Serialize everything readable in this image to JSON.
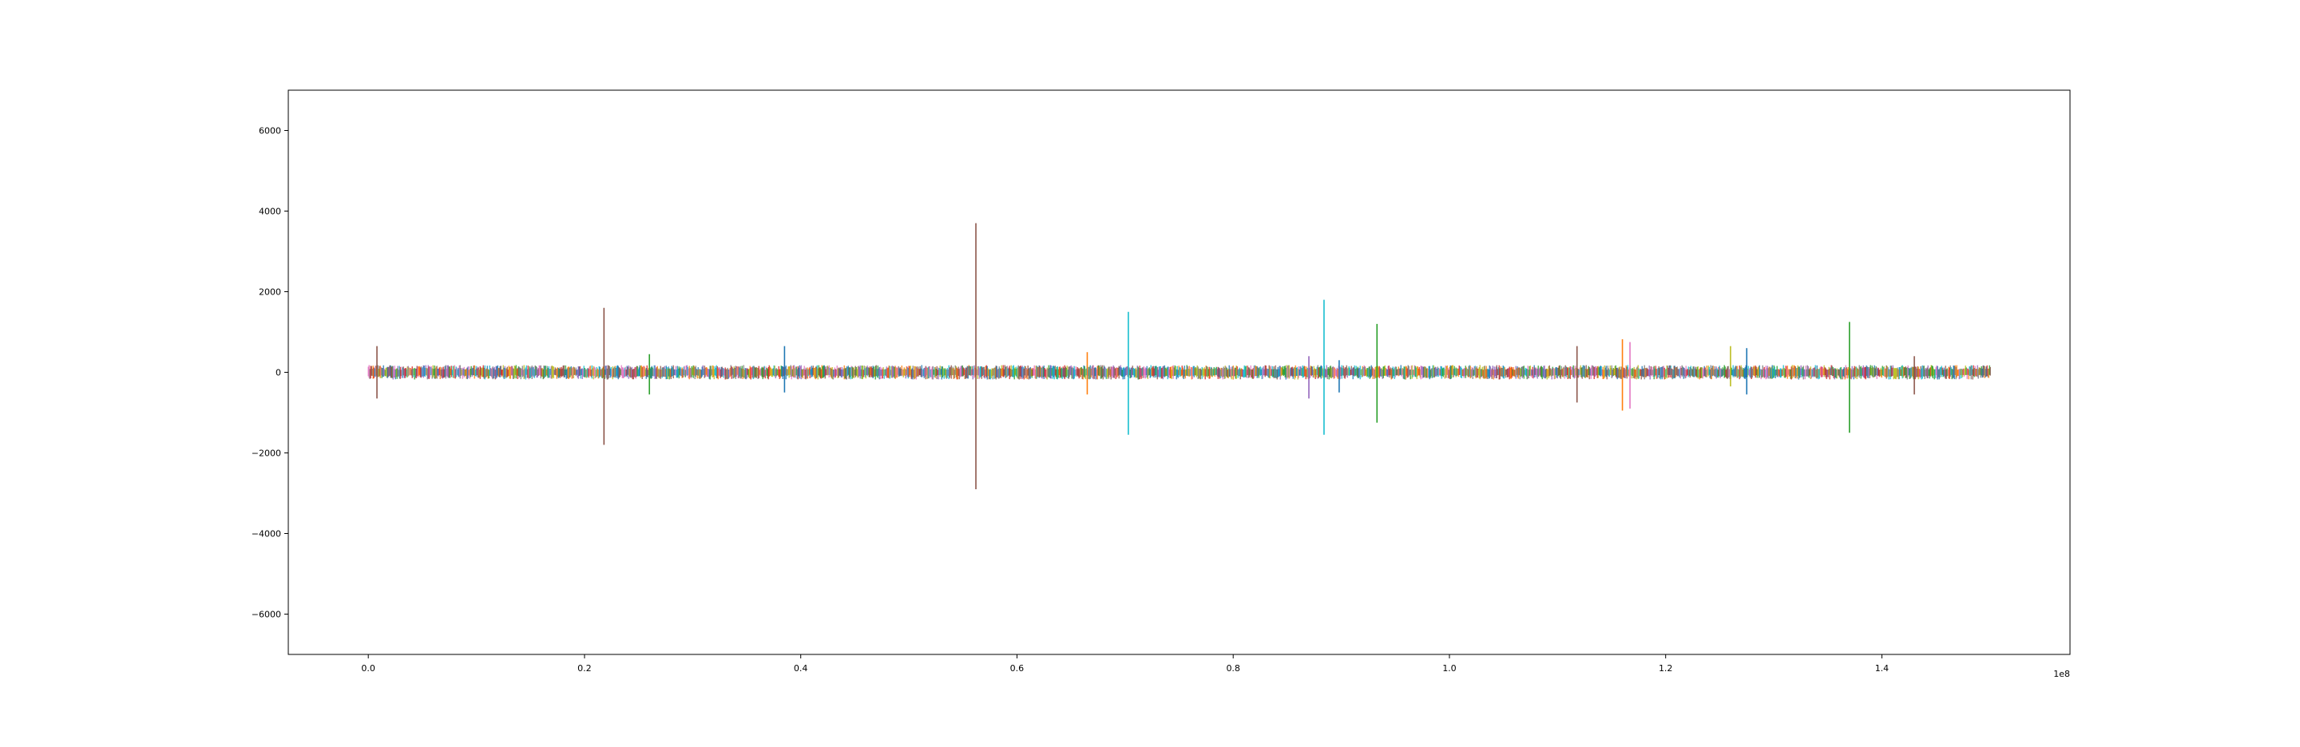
{
  "chart_data": {
    "type": "line",
    "title": "",
    "xlabel": "",
    "ylabel": "",
    "x_offset_label": "1e8",
    "xlim": [
      -0.074,
      1.574
    ],
    "ylim": [
      -7000,
      7000
    ],
    "x_ticks": [
      0.0,
      0.2,
      0.4,
      0.6,
      0.8,
      1.0,
      1.2,
      1.4
    ],
    "x_tick_labels": [
      "0.0",
      "0.2",
      "0.4",
      "0.6",
      "0.8",
      "1.0",
      "1.2",
      "1.4"
    ],
    "y_ticks": [
      6000,
      4000,
      2000,
      0,
      -2000,
      -4000,
      -6000
    ],
    "y_tick_labels": [
      "6000",
      "4000",
      "2000",
      "0",
      "−2000",
      "−4000",
      "−6000"
    ],
    "grid": false,
    "legend": "none",
    "x_range": [
      0.0,
      1.5
    ],
    "baseline_amplitude": [
      -180,
      180
    ],
    "colors": [
      "#1f77b4",
      "#ff7f0e",
      "#2ca02c",
      "#d62728",
      "#9467bd",
      "#8c564b",
      "#e377c2",
      "#7f7f7f",
      "#bcbd22",
      "#17becf"
    ],
    "spikes": [
      {
        "x": 0.008,
        "ymin": -650,
        "ymax": 650,
        "color": "#8c564b"
      },
      {
        "x": 0.218,
        "ymin": -1800,
        "ymax": 1600,
        "color": "#8c564b"
      },
      {
        "x": 0.26,
        "ymin": -550,
        "ymax": 450,
        "color": "#2ca02c"
      },
      {
        "x": 0.385,
        "ymin": -500,
        "ymax": 650,
        "color": "#1f77b4"
      },
      {
        "x": 0.562,
        "ymin": -2900,
        "ymax": 3700,
        "color": "#8c564b"
      },
      {
        "x": 0.665,
        "ymin": -550,
        "ymax": 500,
        "color": "#ff7f0e"
      },
      {
        "x": 0.703,
        "ymin": -1550,
        "ymax": 1500,
        "color": "#17becf"
      },
      {
        "x": 0.87,
        "ymin": -650,
        "ymax": 400,
        "color": "#9467bd"
      },
      {
        "x": 0.884,
        "ymin": -1550,
        "ymax": 1800,
        "color": "#17becf"
      },
      {
        "x": 0.898,
        "ymin": -500,
        "ymax": 300,
        "color": "#1f77b4"
      },
      {
        "x": 0.933,
        "ymin": -1250,
        "ymax": 1200,
        "color": "#2ca02c"
      },
      {
        "x": 1.118,
        "ymin": -750,
        "ymax": 650,
        "color": "#8c564b"
      },
      {
        "x": 1.16,
        "ymin": -950,
        "ymax": 820,
        "color": "#ff7f0e"
      },
      {
        "x": 1.167,
        "ymin": -900,
        "ymax": 750,
        "color": "#e377c2"
      },
      {
        "x": 1.26,
        "ymin": -350,
        "ymax": 650,
        "color": "#bcbd22"
      },
      {
        "x": 1.275,
        "ymin": -550,
        "ymax": 600,
        "color": "#1f77b4"
      },
      {
        "x": 1.37,
        "ymin": -1500,
        "ymax": 1250,
        "color": "#2ca02c"
      },
      {
        "x": 1.43,
        "ymin": -550,
        "ymax": 400,
        "color": "#8c564b"
      }
    ]
  }
}
